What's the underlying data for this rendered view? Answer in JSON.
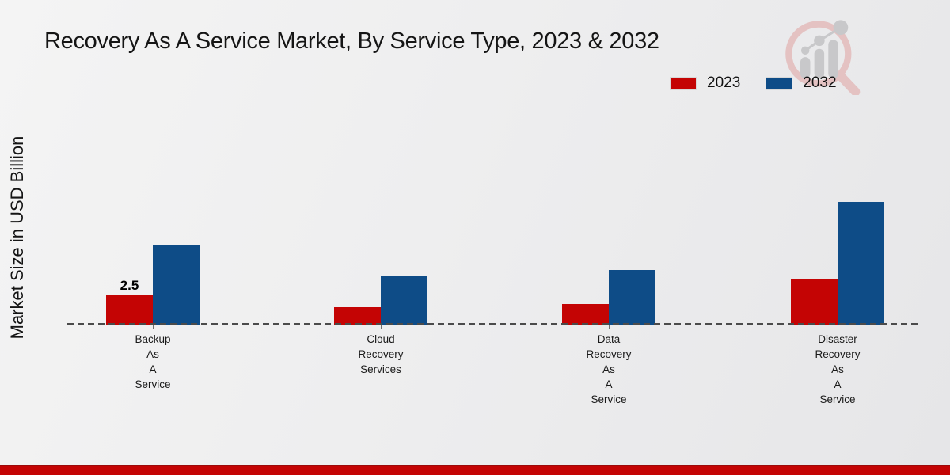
{
  "title": "Recovery As A Service Market, By Service Type, 2023 & 2032",
  "ylabel": "Market Size in USD Billion",
  "legend": [
    {
      "label": "2023",
      "color": "#c40404"
    },
    {
      "label": "2032",
      "color": "#0e4c87"
    }
  ],
  "colors": {
    "accent_red": "#c40404",
    "bar_blue": "#0e4c87",
    "background": "#ededee"
  },
  "logo": {
    "name": "magnifier-bar-chart-watermark"
  },
  "chart_data": {
    "type": "bar",
    "title": "Recovery As A Service Market, By Service Type, 2023 & 2032",
    "xlabel": "",
    "ylabel": "Market Size in USD Billion",
    "categories": [
      "Backup As A Service",
      "Cloud Recovery Services",
      "Data Recovery As A Service",
      "Disaster Recovery As A Service"
    ],
    "category_lines": [
      [
        "Backup",
        "As",
        "A",
        "Service"
      ],
      [
        "Cloud",
        "Recovery",
        "Services"
      ],
      [
        "Data",
        "Recovery",
        "As",
        "A",
        "Service"
      ],
      [
        "Disaster",
        "Recovery",
        "As",
        "A",
        "Service"
      ]
    ],
    "series": [
      {
        "name": "2023",
        "color": "#c40404",
        "values": [
          2.5,
          1.45,
          1.7,
          3.8
        ]
      },
      {
        "name": "2032",
        "color": "#0e4c87",
        "values": [
          6.6,
          4.1,
          4.55,
          10.2
        ]
      }
    ],
    "data_labels": [
      {
        "series": "2023",
        "category": "Backup As A Service",
        "text": "2.5"
      }
    ],
    "ylim": [
      0,
      12
    ],
    "grid": false,
    "baseline_style": "dashed",
    "legend_position": "top-right"
  }
}
